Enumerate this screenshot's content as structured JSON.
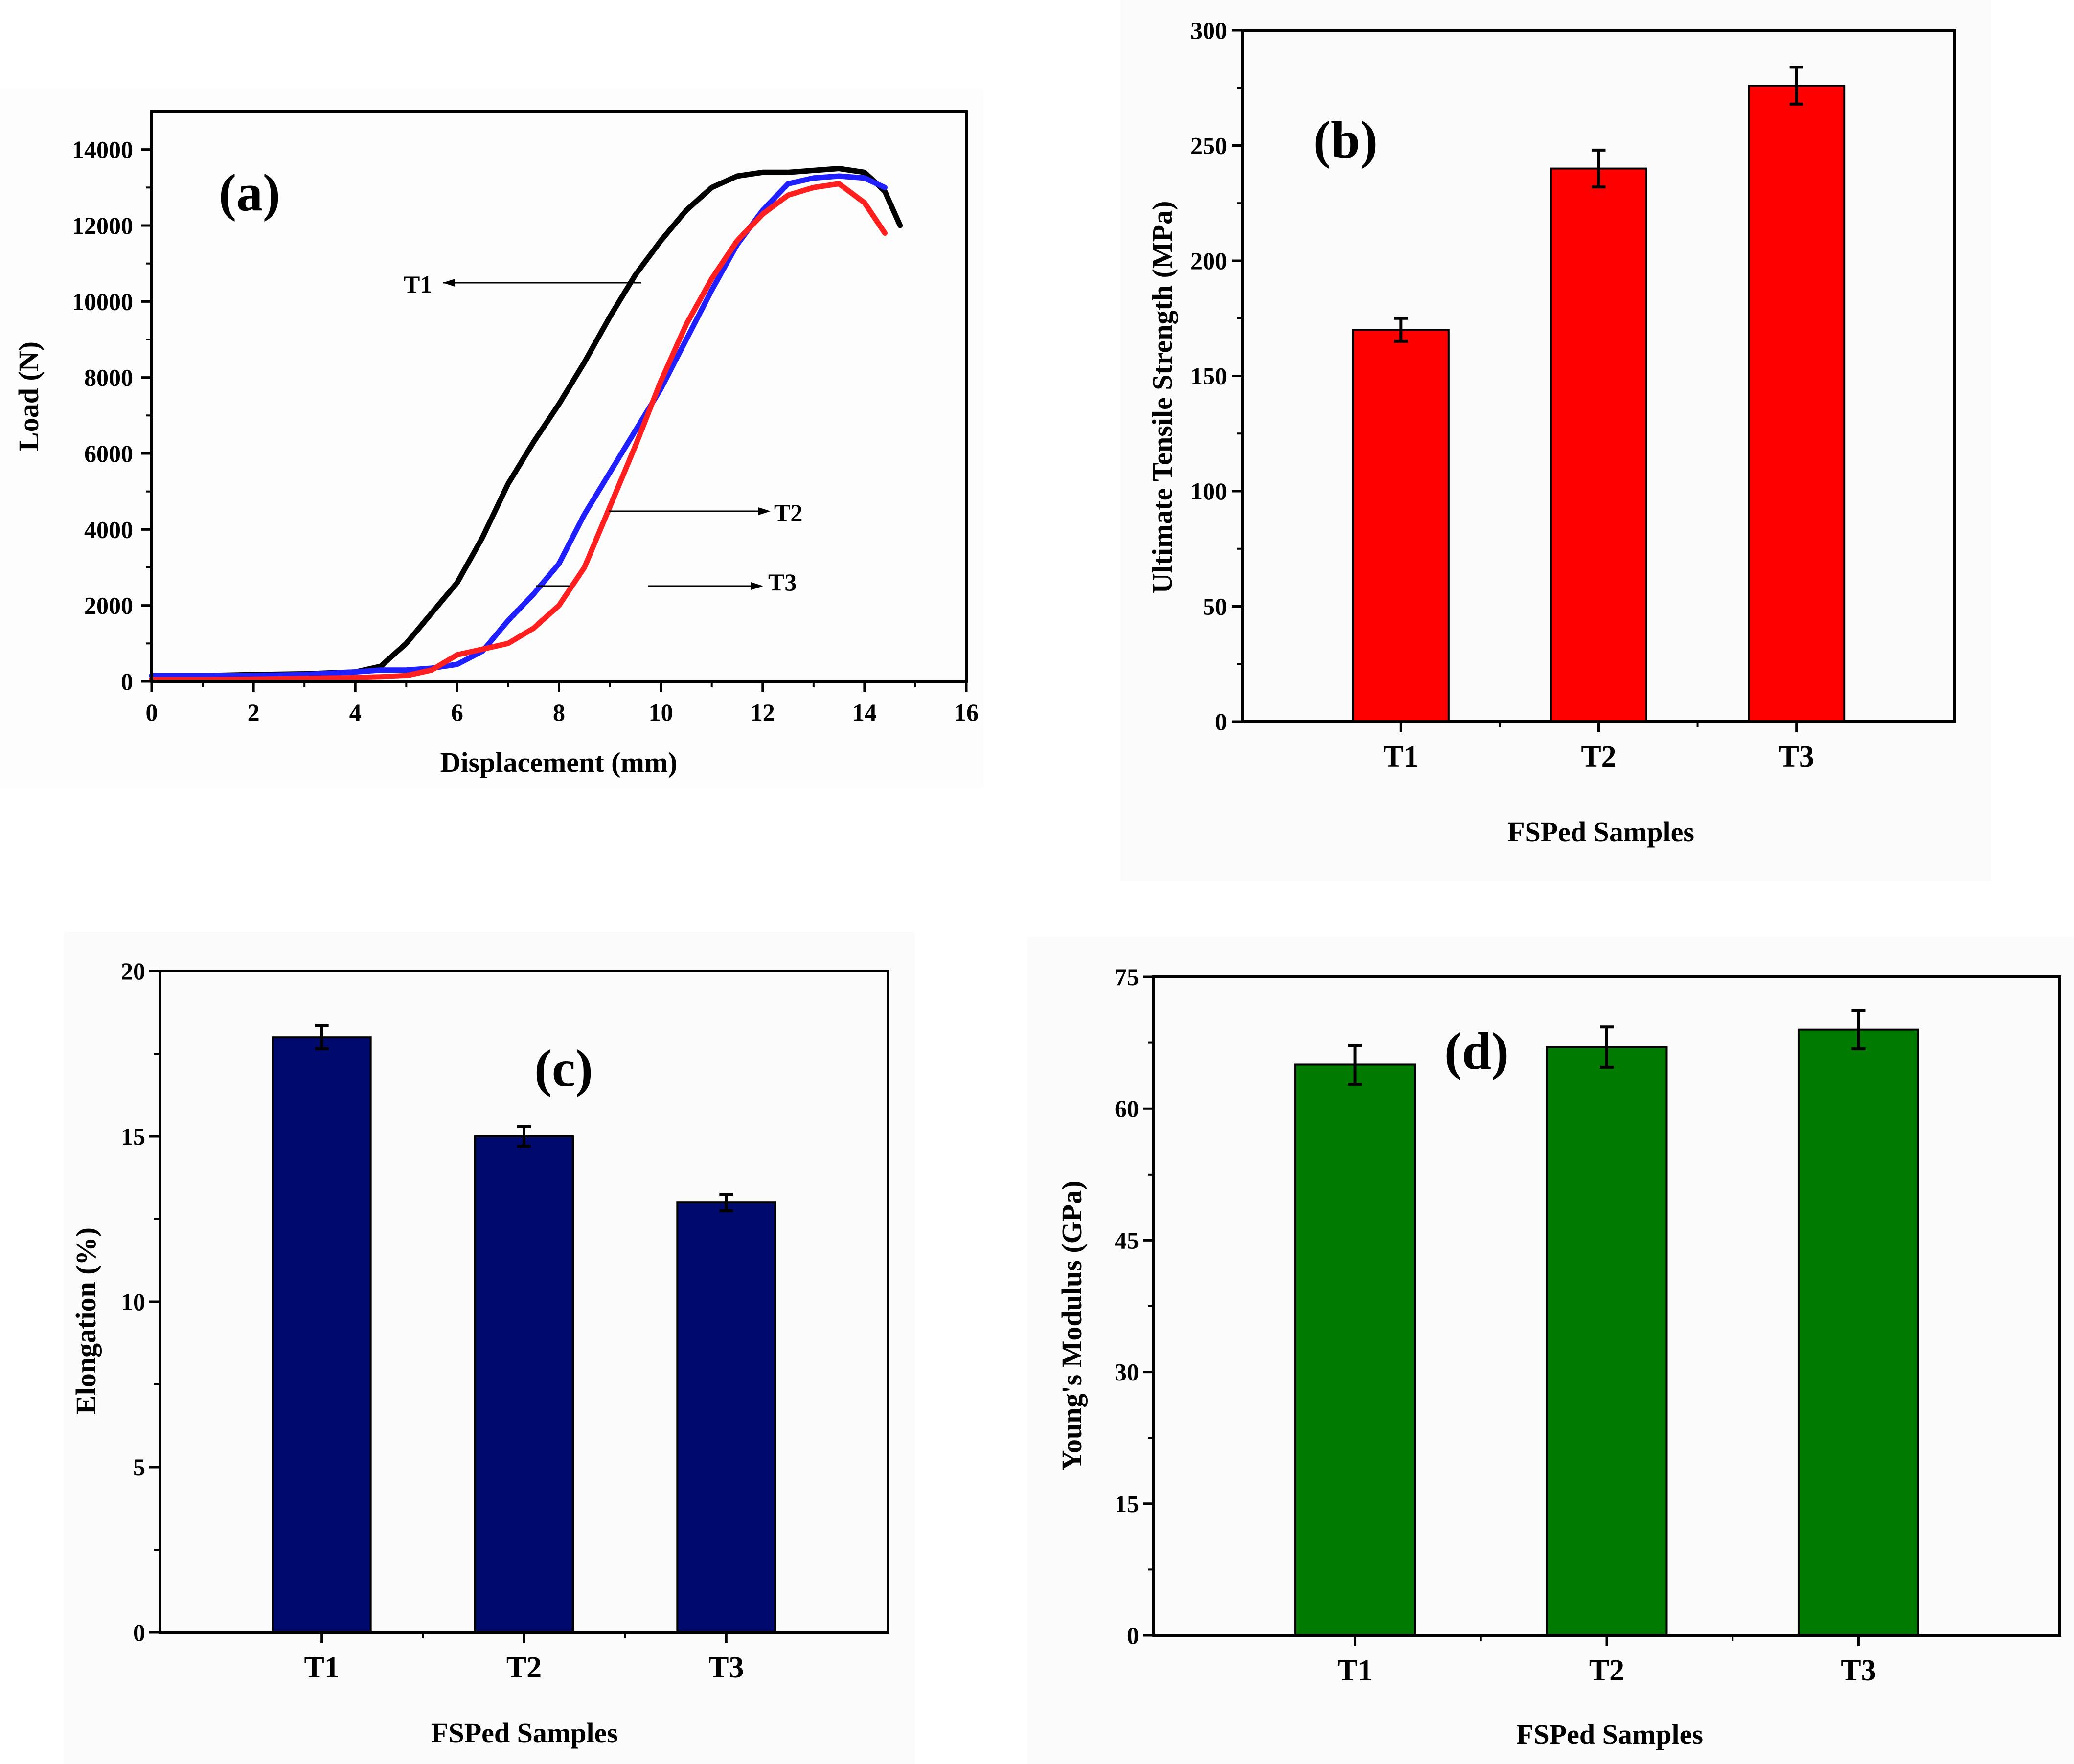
{
  "figure": {
    "background": "#ffffff"
  },
  "chart_data": [
    {
      "id": "a",
      "type": "line",
      "panel_label": "(a)",
      "xlabel": "Displacement (mm)",
      "ylabel": "Load (N)",
      "xlim": [
        0,
        16
      ],
      "ylim": [
        0,
        15000
      ],
      "xticks": [
        0,
        2,
        4,
        6,
        8,
        10,
        12,
        14,
        16
      ],
      "yticks": [
        0,
        2000,
        4000,
        6000,
        8000,
        10000,
        12000,
        14000
      ],
      "series": [
        {
          "name": "T1",
          "color": "#000000",
          "x": [
            0,
            1,
            2,
            3,
            4,
            4.5,
            5,
            5.5,
            6,
            6.5,
            7,
            7.5,
            8,
            8.5,
            9,
            9.5,
            10,
            10.5,
            11,
            11.5,
            12,
            12.5,
            13,
            13.5,
            14,
            14.4,
            14.7
          ],
          "y": [
            150,
            150,
            180,
            200,
            250,
            400,
            1000,
            1800,
            2600,
            3800,
            5200,
            6300,
            7300,
            8400,
            9600,
            10700,
            11600,
            12400,
            13000,
            13300,
            13400,
            13400,
            13450,
            13500,
            13400,
            12900,
            12000
          ]
        },
        {
          "name": "T2",
          "color": "#1f1fff",
          "x": [
            0,
            1,
            2,
            3,
            4,
            4.5,
            5,
            5.5,
            6,
            6.5,
            7,
            7.5,
            8,
            8.5,
            9,
            9.5,
            10,
            10.5,
            11,
            11.5,
            12,
            12.5,
            13,
            13.5,
            14,
            14.4
          ],
          "y": [
            150,
            150,
            150,
            180,
            250,
            300,
            300,
            350,
            450,
            800,
            1600,
            2300,
            3100,
            4400,
            5500,
            6600,
            7700,
            9000,
            10300,
            11500,
            12400,
            13100,
            13250,
            13300,
            13250,
            13000
          ]
        },
        {
          "name": "T3",
          "color": "#ff1f1f",
          "x": [
            0,
            1,
            2,
            3,
            4,
            4.5,
            5,
            5.5,
            6,
            6.5,
            7,
            7.5,
            8,
            8.5,
            9,
            9.5,
            10,
            10.5,
            11,
            11.5,
            12,
            12.5,
            13,
            13.5,
            14,
            14.4
          ],
          "y": [
            50,
            50,
            60,
            80,
            100,
            120,
            150,
            300,
            700,
            850,
            1000,
            1400,
            2000,
            3000,
            4600,
            6200,
            7900,
            9400,
            10600,
            11600,
            12300,
            12800,
            13000,
            13100,
            12600,
            11800
          ]
        }
      ]
    },
    {
      "id": "b",
      "type": "bar",
      "panel_label": "(b)",
      "categories": [
        "T1",
        "T2",
        "T3"
      ],
      "values": [
        170,
        240,
        276
      ],
      "errors": [
        5,
        8,
        8
      ],
      "color": "#ff0000",
      "xlabel": "FSPed Samples",
      "ylabel": "Ultimate Tensile Strength (MPa)",
      "ylim": [
        0,
        300
      ],
      "yticks": [
        0,
        50,
        100,
        150,
        200,
        250,
        300
      ]
    },
    {
      "id": "c",
      "type": "bar",
      "panel_label": "(c)",
      "categories": [
        "T1",
        "T2",
        "T3"
      ],
      "values": [
        18,
        15,
        13
      ],
      "errors": [
        0.35,
        0.3,
        0.25
      ],
      "color": "#000a6e",
      "xlabel": "FSPed Samples",
      "ylabel": "Elongation (%)",
      "ylim": [
        0,
        20
      ],
      "yticks": [
        0,
        5,
        10,
        15,
        20
      ]
    },
    {
      "id": "d",
      "type": "bar",
      "panel_label": "(d)",
      "categories": [
        "T1",
        "T2",
        "T3"
      ],
      "values": [
        65,
        67,
        69
      ],
      "errors": [
        2.2,
        2.3,
        2.2
      ],
      "color": "#007b00",
      "xlabel": "FSPed Samples",
      "ylabel": "Young's Modulus (GPa)",
      "ylim": [
        0,
        75
      ],
      "yticks": [
        0,
        15,
        30,
        45,
        60,
        75
      ]
    }
  ]
}
